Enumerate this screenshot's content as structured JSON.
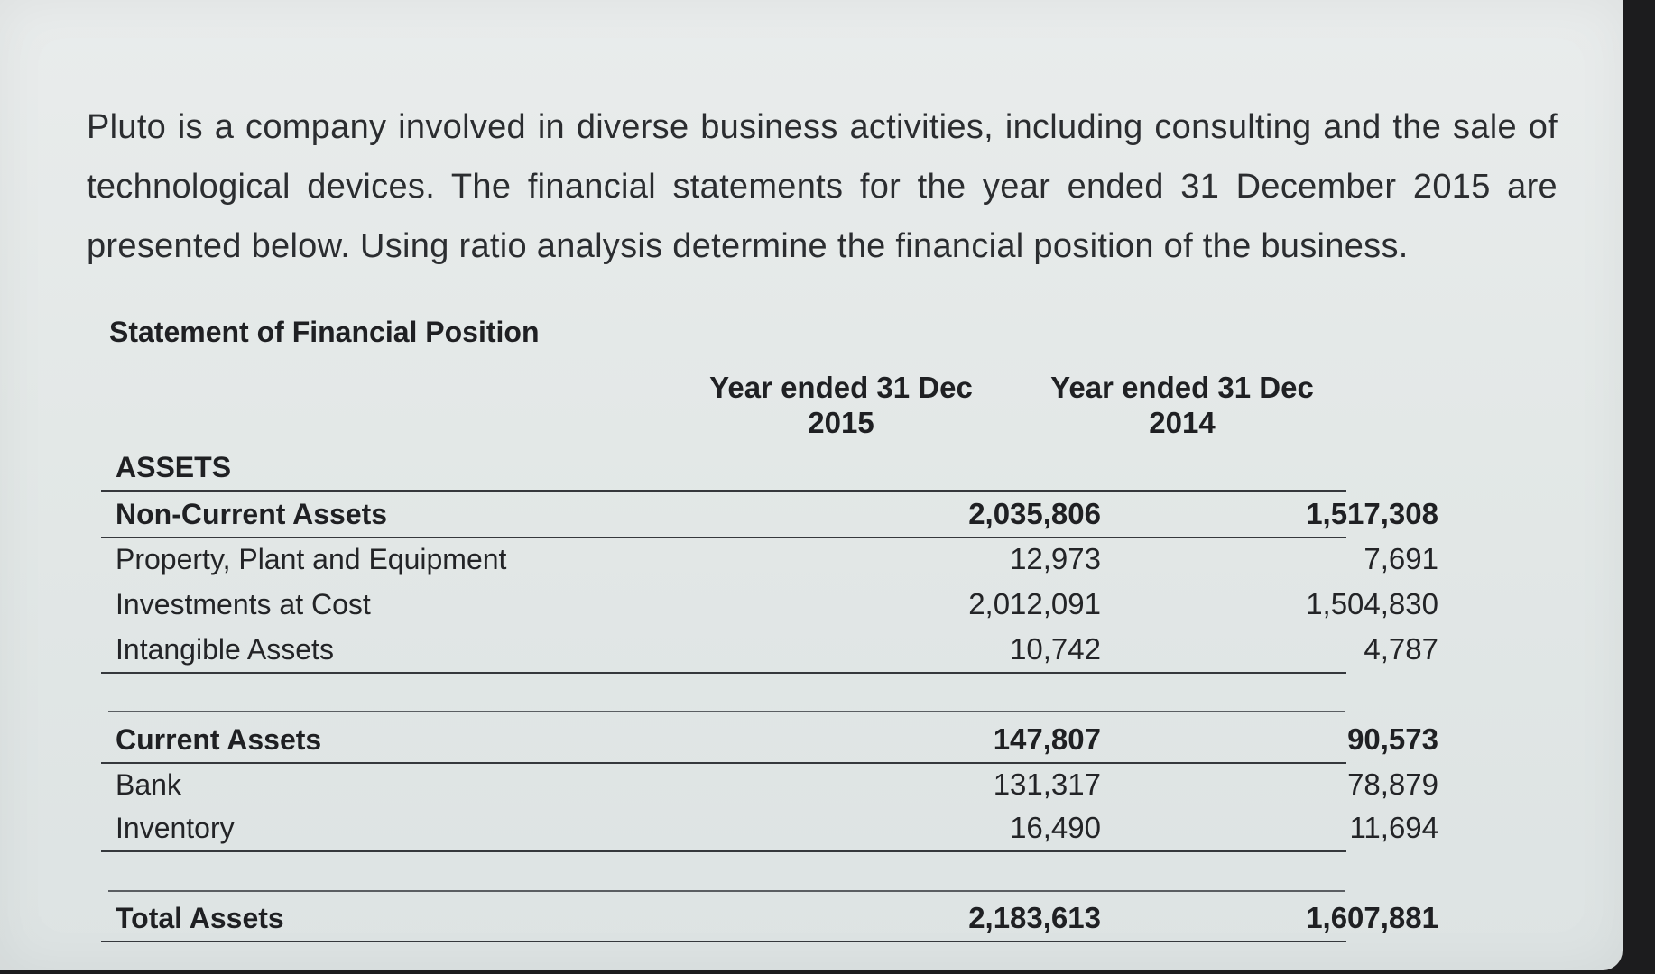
{
  "intro": "Pluto is a company involved in diverse business activities, including consulting and the sale of technological devices. The financial statements for the year ended 31 December 2015 are presented below. Using ratio analysis determine the financial position of the business.",
  "statement": {
    "title": "Statement of Financial Position",
    "columns": [
      {
        "line1": "Year ended 31 Dec",
        "line2": "2015"
      },
      {
        "line1": "Year ended 31 Dec",
        "line2": "2014"
      }
    ],
    "rows": [
      {
        "label": "ASSETS",
        "v2015": "",
        "v2014": ""
      },
      {
        "label": "Non-Current Assets",
        "v2015": "2,035,806",
        "v2014": "1,517,308"
      },
      {
        "label": "Property, Plant and Equipment",
        "v2015": "12,973",
        "v2014": "7,691"
      },
      {
        "label": "Investments at Cost",
        "v2015": "2,012,091",
        "v2014": "1,504,830"
      },
      {
        "label": "Intangible Assets",
        "v2015": "10,742",
        "v2014": "4,787"
      },
      {
        "label": "Current Assets",
        "v2015": "147,807",
        "v2014": "90,573"
      },
      {
        "label": "Bank",
        "v2015": "131,317",
        "v2014": "78,879"
      },
      {
        "label": "Inventory",
        "v2015": "16,490",
        "v2014": "11,694"
      },
      {
        "label": "Total Assets",
        "v2015": "2,183,613",
        "v2014": "1,607,881"
      }
    ]
  }
}
